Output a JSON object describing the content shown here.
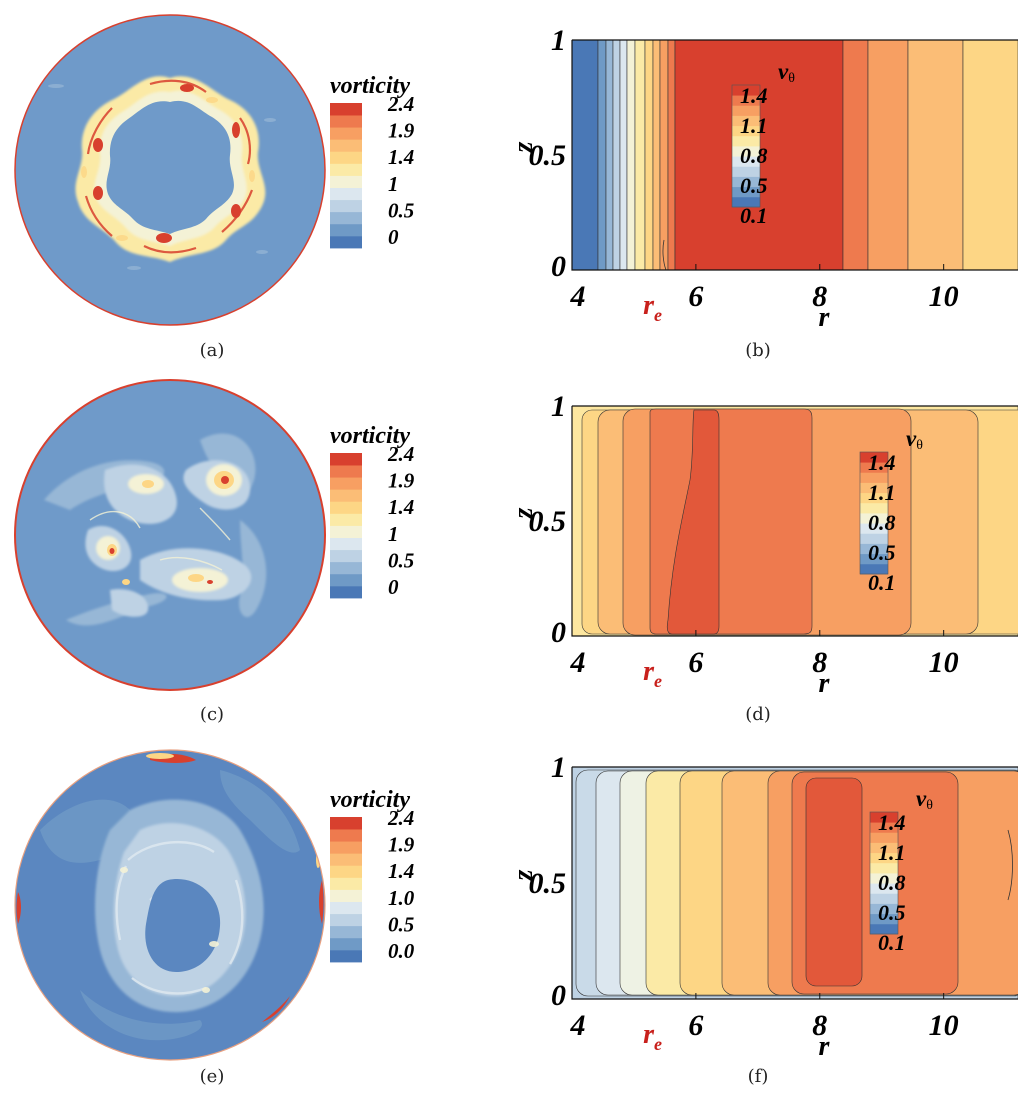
{
  "panels": [
    {
      "kind": "vorticity",
      "caption": "(a)",
      "legend_title": "vorticity",
      "legend_ticks": [
        "2.4",
        "1.9",
        "1.4",
        "1",
        "0.5",
        "0"
      ]
    },
    {
      "kind": "velocity",
      "caption": "(b)",
      "legend_title": "v",
      "legend_title_sub": "θ",
      "legend_ticks": [
        "1.4",
        "1.1",
        "0.8",
        "0.5",
        "0.1"
      ],
      "xlabel": "r",
      "ylabel": "z",
      "x_ticks": [
        "4",
        "6",
        "8",
        "10"
      ],
      "y_ticks": [
        "0",
        "0.5",
        "1"
      ],
      "marker_label": "r",
      "marker_sub": "e"
    },
    {
      "kind": "vorticity",
      "caption": "(c)",
      "legend_title": "vorticity",
      "legend_ticks": [
        "2.4",
        "1.9",
        "1.4",
        "1",
        "0.5",
        "0"
      ]
    },
    {
      "kind": "velocity",
      "caption": "(d)",
      "legend_title": "v",
      "legend_title_sub": "θ",
      "legend_ticks": [
        "1.4",
        "1.1",
        "0.8",
        "0.5",
        "0.1"
      ],
      "xlabel": "r",
      "ylabel": "z",
      "x_ticks": [
        "4",
        "6",
        "8",
        "10"
      ],
      "y_ticks": [
        "0",
        "0.5",
        "1"
      ],
      "marker_label": "r",
      "marker_sub": "e"
    },
    {
      "kind": "vorticity",
      "caption": "(e)",
      "legend_title": "vorticity",
      "legend_ticks": [
        "2.4",
        "1.9",
        "1.4",
        "1.0",
        "0.5",
        "0.0"
      ]
    },
    {
      "kind": "velocity",
      "caption": "(f)",
      "legend_title": "v",
      "legend_title_sub": "θ",
      "legend_ticks": [
        "1.4",
        "1.1",
        "0.8",
        "0.5",
        "0.1"
      ],
      "xlabel": "r",
      "ylabel": "z",
      "x_ticks": [
        "4",
        "6",
        "8",
        "10"
      ],
      "y_ticks": [
        "0",
        "0.5",
        "1"
      ],
      "marker_label": "r",
      "marker_sub": "e"
    }
  ],
  "colorscale": [
    "#4a78b6",
    "#6f9ac6",
    "#97b7d6",
    "#bed2e4",
    "#dce7ef",
    "#f4f2d6",
    "#fbeaa6",
    "#fdd685",
    "#fbbd76",
    "#f79f62",
    "#ee7a4e",
    "#d8402e"
  ],
  "colors": {
    "background_vorticity": "#6f9ac9",
    "marker_red": "#c8201c"
  }
}
